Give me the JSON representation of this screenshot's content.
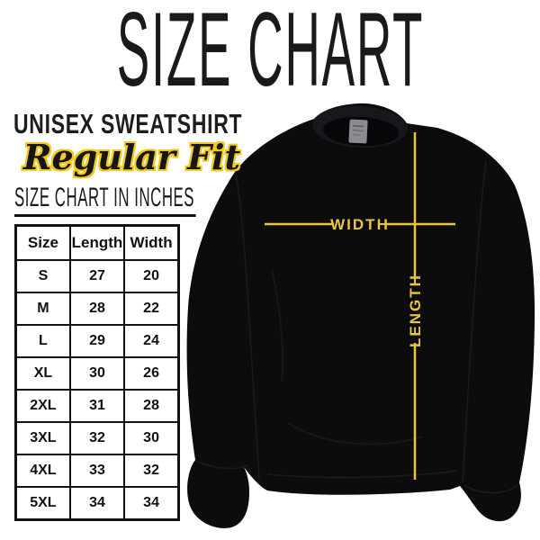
{
  "page": {
    "title": "SIZE CHART",
    "product": "UNISEX SWEATSHIRT",
    "fit": "Regular Fit",
    "table_heading": "SIZE CHART IN INCHES"
  },
  "size_table": {
    "headers": [
      "Size",
      "Length",
      "Width"
    ],
    "rows": [
      [
        "S",
        "27",
        "20"
      ],
      [
        "M",
        "28",
        "22"
      ],
      [
        "L",
        "29",
        "24"
      ],
      [
        "XL",
        "30",
        "26"
      ],
      [
        "2XL",
        "31",
        "28"
      ],
      [
        "3XL",
        "32",
        "30"
      ],
      [
        "4XL",
        "33",
        "32"
      ],
      [
        "5XL",
        "34",
        "34"
      ]
    ]
  },
  "diagram": {
    "width_label": "WIDTH",
    "length_label": "LENGTH"
  },
  "colors": {
    "accent_yellow": "#F4C81F",
    "measure_line_yellow": "#E9C63E",
    "ink_black": "#141414",
    "garment_black": "#0C0C0F",
    "neck_tag_gray": "#8B8B92"
  }
}
